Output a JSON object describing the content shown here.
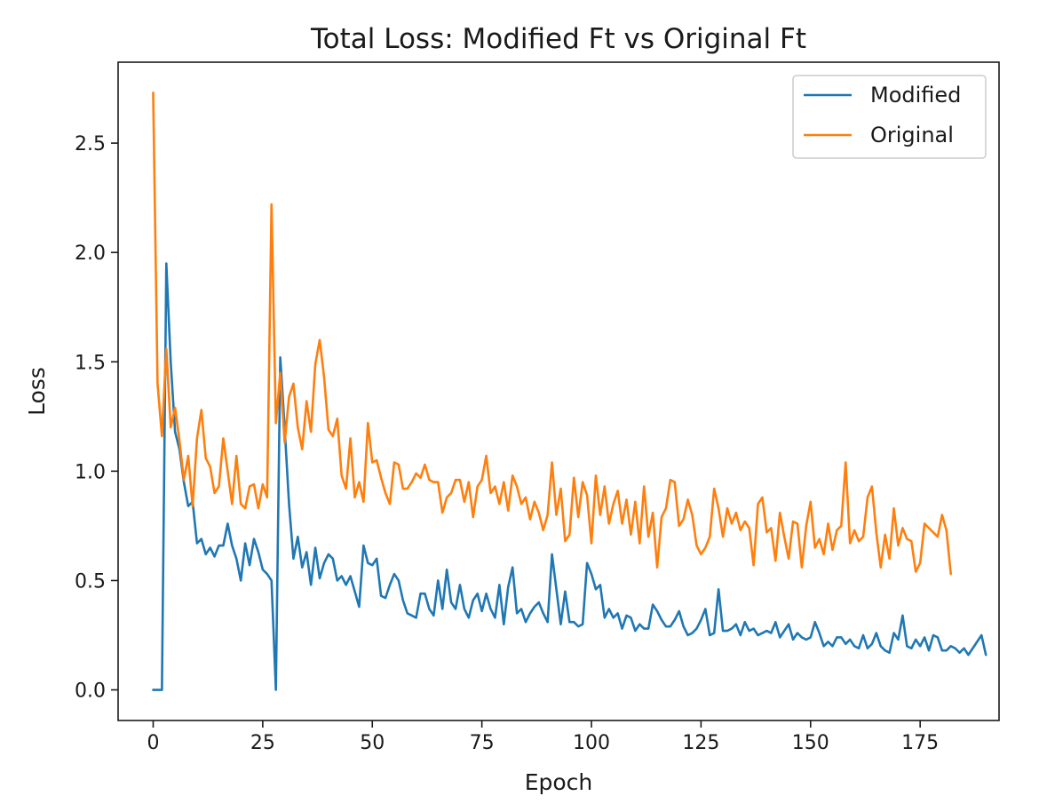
{
  "chart_data": {
    "type": "line",
    "title": "Total Loss: Modified Ft vs Original Ft",
    "xlabel": "Epoch",
    "ylabel": "Loss",
    "xlim": [
      -8,
      193
    ],
    "ylim": [
      -0.14,
      2.87
    ],
    "xticks": [
      0,
      25,
      50,
      75,
      100,
      125,
      150,
      175
    ],
    "yticks": [
      0.0,
      0.5,
      1.0,
      1.5,
      2.0,
      2.5
    ],
    "xtick_labels": [
      "0",
      "25",
      "50",
      "75",
      "100",
      "125",
      "150",
      "175"
    ],
    "ytick_labels": [
      "0.0",
      "0.5",
      "1.0",
      "1.5",
      "2.0",
      "2.5"
    ],
    "grid": false,
    "legend_position": "top-right",
    "series": [
      {
        "name": "Modified",
        "color": "#1f77b4",
        "values": [
          0.0,
          0.0,
          0.0,
          1.95,
          1.5,
          1.18,
          1.1,
          0.95,
          0.84,
          0.86,
          0.67,
          0.69,
          0.62,
          0.65,
          0.61,
          0.66,
          0.66,
          0.76,
          0.66,
          0.6,
          0.5,
          0.67,
          0.57,
          0.69,
          0.63,
          0.55,
          0.53,
          0.5,
          0.0,
          1.52,
          1.2,
          0.85,
          0.6,
          0.7,
          0.56,
          0.63,
          0.48,
          0.65,
          0.51,
          0.58,
          0.62,
          0.6,
          0.5,
          0.52,
          0.48,
          0.52,
          0.45,
          0.38,
          0.66,
          0.58,
          0.57,
          0.6,
          0.43,
          0.42,
          0.48,
          0.53,
          0.5,
          0.41,
          0.35,
          0.34,
          0.33,
          0.44,
          0.44,
          0.37,
          0.34,
          0.5,
          0.37,
          0.55,
          0.4,
          0.37,
          0.48,
          0.37,
          0.33,
          0.41,
          0.44,
          0.36,
          0.44,
          0.37,
          0.33,
          0.48,
          0.3,
          0.47,
          0.56,
          0.35,
          0.37,
          0.31,
          0.35,
          0.38,
          0.4,
          0.35,
          0.31,
          0.62,
          0.46,
          0.3,
          0.45,
          0.31,
          0.31,
          0.29,
          0.3,
          0.58,
          0.53,
          0.46,
          0.48,
          0.33,
          0.37,
          0.33,
          0.35,
          0.28,
          0.34,
          0.33,
          0.27,
          0.3,
          0.28,
          0.28,
          0.39,
          0.36,
          0.32,
          0.29,
          0.29,
          0.32,
          0.36,
          0.29,
          0.25,
          0.26,
          0.28,
          0.32,
          0.37,
          0.25,
          0.26,
          0.46,
          0.27,
          0.27,
          0.28,
          0.3,
          0.25,
          0.31,
          0.27,
          0.28,
          0.25,
          0.26,
          0.27,
          0.26,
          0.31,
          0.24,
          0.27,
          0.3,
          0.23,
          0.26,
          0.24,
          0.23,
          0.24,
          0.31,
          0.26,
          0.2,
          0.22,
          0.2,
          0.24,
          0.24,
          0.21,
          0.23,
          0.2,
          0.19,
          0.25,
          0.19,
          0.21,
          0.26,
          0.2,
          0.18,
          0.17,
          0.26,
          0.23,
          0.34,
          0.2,
          0.19,
          0.23,
          0.2,
          0.24,
          0.18,
          0.25,
          0.24,
          0.18,
          0.18,
          0.2,
          0.19,
          0.17,
          0.19,
          0.16,
          0.19,
          0.22,
          0.25,
          0.16
        ]
      },
      {
        "name": "Original",
        "color": "#ff7f0e",
        "values": [
          2.73,
          1.4,
          1.16,
          1.56,
          1.2,
          1.29,
          1.14,
          0.96,
          1.07,
          0.84,
          1.15,
          1.28,
          1.06,
          1.02,
          0.9,
          0.93,
          1.15,
          1.0,
          0.85,
          1.07,
          0.85,
          0.83,
          0.93,
          0.94,
          0.83,
          0.94,
          0.88,
          2.22,
          1.22,
          1.45,
          1.13,
          1.34,
          1.4,
          1.2,
          1.1,
          1.32,
          1.18,
          1.49,
          1.6,
          1.43,
          1.19,
          1.16,
          1.24,
          0.98,
          0.92,
          1.15,
          0.88,
          0.95,
          0.86,
          1.22,
          1.04,
          1.05,
          0.97,
          0.9,
          0.85,
          1.04,
          1.03,
          0.92,
          0.92,
          0.95,
          0.99,
          0.97,
          1.03,
          0.96,
          0.95,
          0.95,
          0.81,
          0.88,
          0.9,
          0.96,
          0.96,
          0.86,
          0.95,
          0.79,
          0.93,
          0.96,
          1.07,
          0.9,
          0.93,
          0.85,
          0.95,
          0.82,
          0.98,
          0.93,
          0.85,
          0.88,
          0.78,
          0.86,
          0.81,
          0.73,
          0.8,
          1.04,
          0.8,
          0.92,
          0.68,
          0.71,
          0.97,
          0.79,
          0.95,
          0.89,
          0.67,
          0.98,
          0.8,
          0.93,
          0.76,
          0.85,
          0.91,
          0.76,
          0.87,
          0.71,
          0.86,
          0.67,
          0.93,
          0.7,
          0.81,
          0.56,
          0.79,
          0.83,
          0.96,
          0.95,
          0.75,
          0.78,
          0.87,
          0.8,
          0.66,
          0.62,
          0.65,
          0.7,
          0.92,
          0.83,
          0.7,
          0.83,
          0.76,
          0.81,
          0.73,
          0.77,
          0.74,
          0.57,
          0.85,
          0.88,
          0.72,
          0.74,
          0.59,
          0.81,
          0.7,
          0.6,
          0.77,
          0.76,
          0.56,
          0.75,
          0.86,
          0.65,
          0.69,
          0.62,
          0.76,
          0.64,
          0.73,
          0.75,
          1.04,
          0.67,
          0.73,
          0.68,
          0.7,
          0.88,
          0.93,
          0.72,
          0.56,
          0.71,
          0.6,
          0.83,
          0.66,
          0.74,
          0.69,
          0.68,
          0.54,
          0.58,
          0.76,
          0.74,
          0.72,
          0.7,
          0.8,
          0.73,
          0.53
        ]
      }
    ]
  }
}
